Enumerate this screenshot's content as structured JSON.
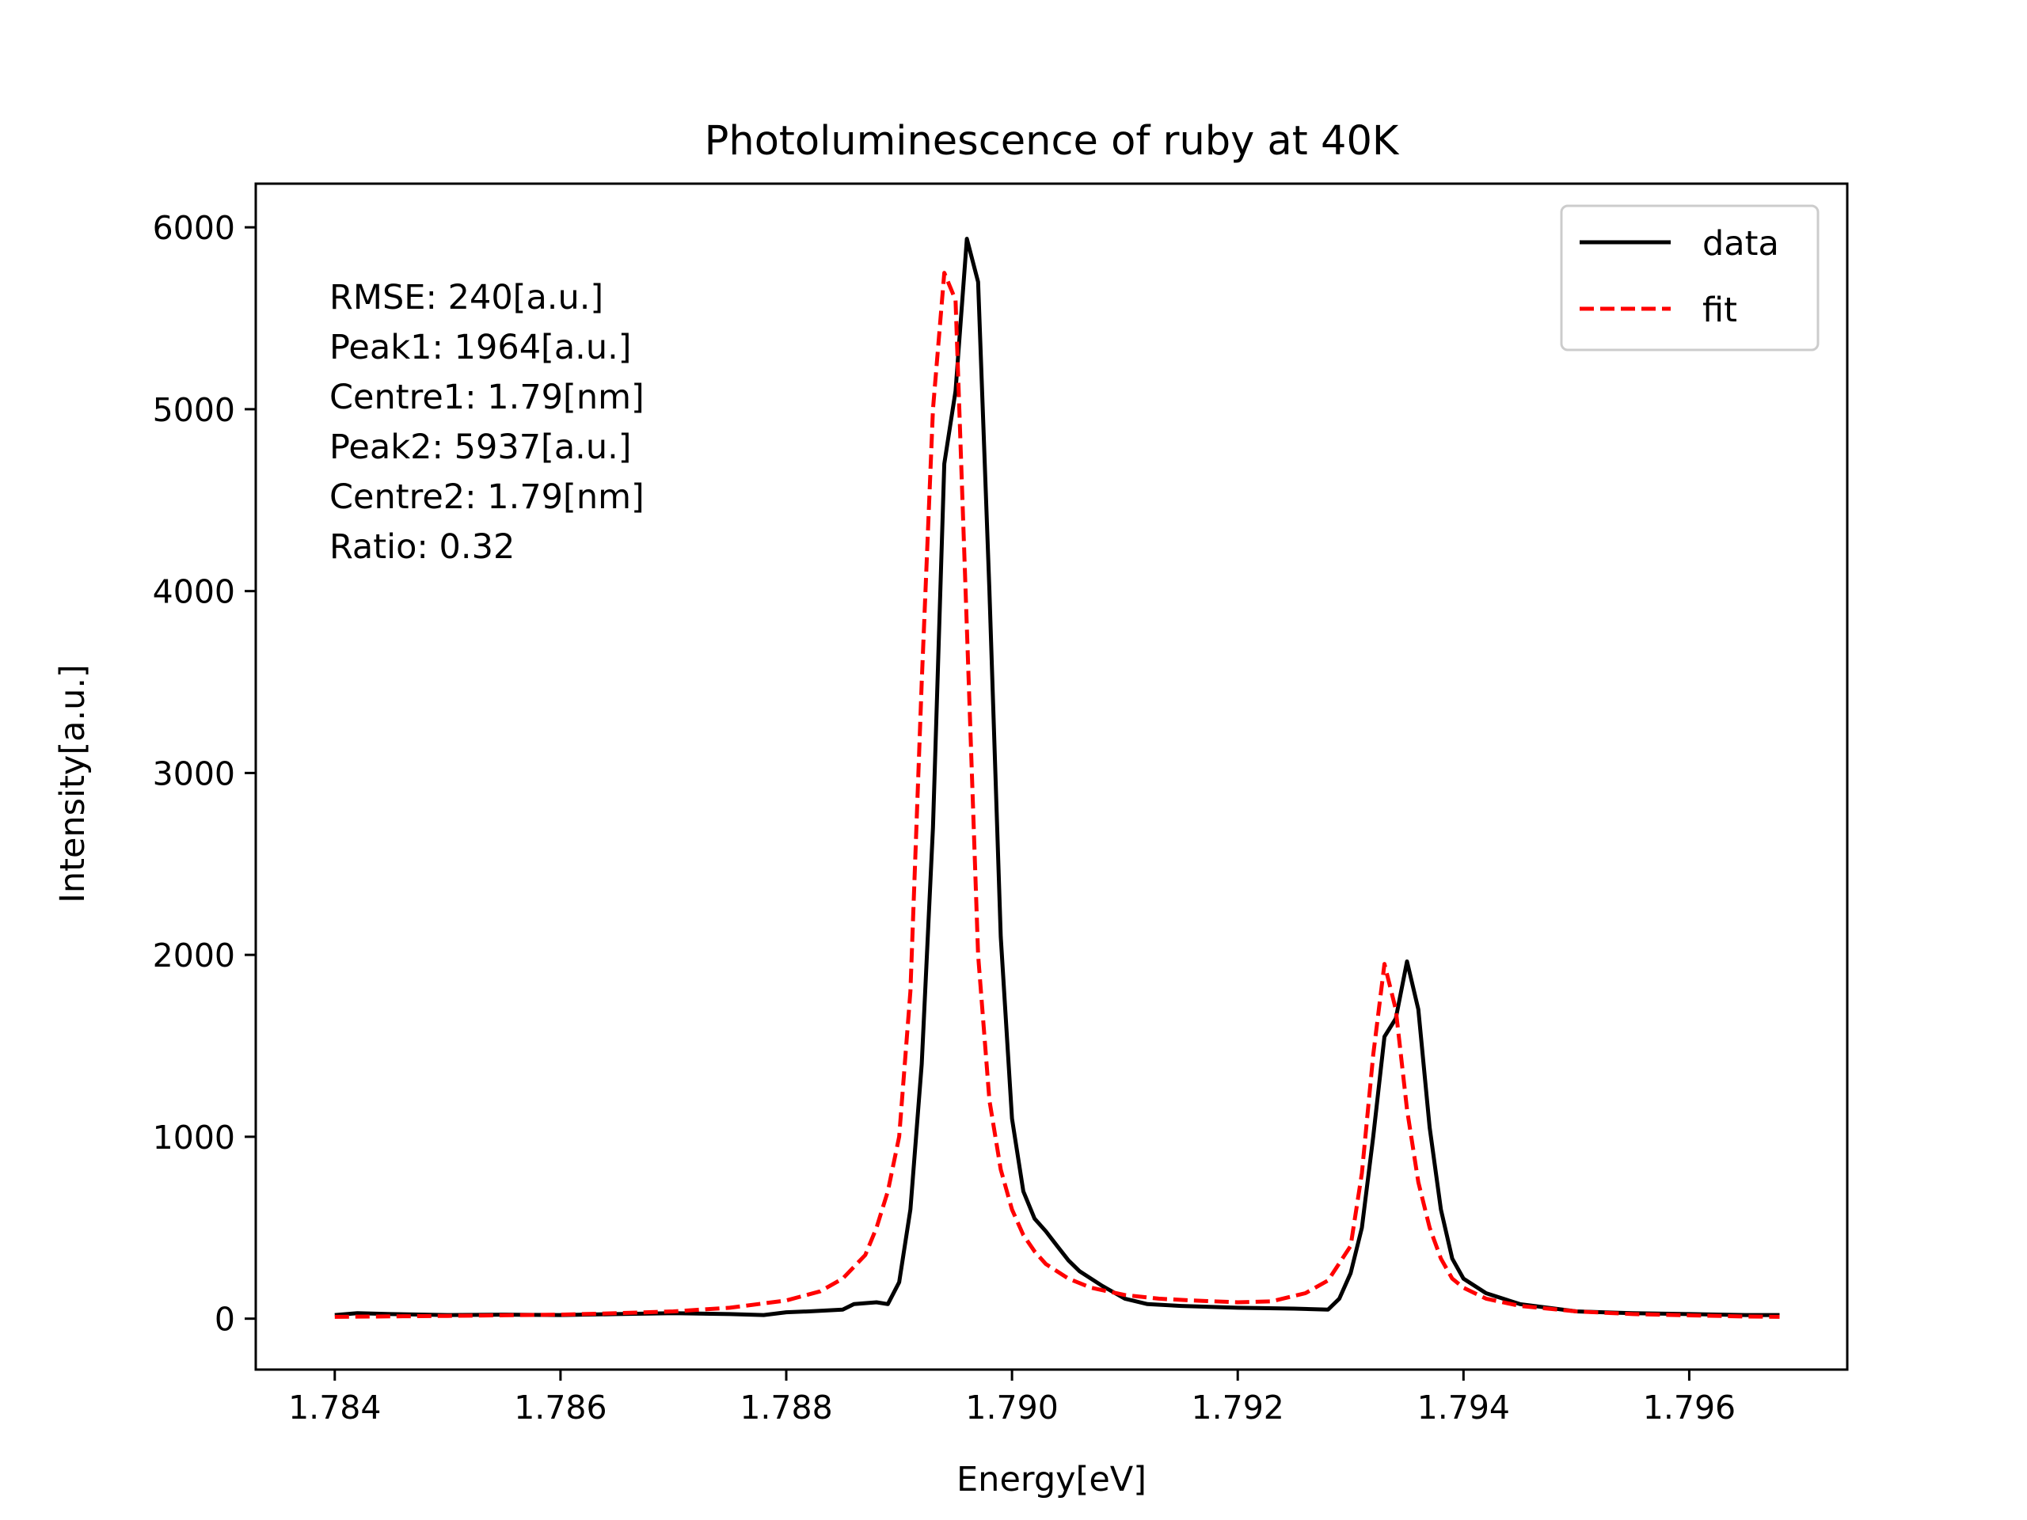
{
  "chart_data": {
    "type": "line",
    "title": "Photoluminescence of ruby at 40K",
    "xlabel": "Energy[eV]",
    "ylabel": "Intensity[a.u.]",
    "xlim": [
      1.7833,
      1.7974
    ],
    "ylim": [
      -280,
      6240
    ],
    "xticks": [
      1.784,
      1.786,
      1.788,
      1.79,
      1.792,
      1.794,
      1.796
    ],
    "xtick_labels": [
      "1.784",
      "1.786",
      "1.788",
      "1.790",
      "1.792",
      "1.794",
      "1.796"
    ],
    "yticks": [
      0,
      1000,
      2000,
      3000,
      4000,
      5000,
      6000
    ],
    "ytick_labels": [
      "0",
      "1000",
      "2000",
      "3000",
      "4000",
      "5000",
      "6000"
    ],
    "grid": false,
    "legend_position": "top-right",
    "annotations": [
      "RMSE: 240[a.u.]",
      "Peak1: 1964[a.u.]",
      "Centre1: 1.79[nm]",
      "Peak2: 5937[a.u.]",
      "Centre2: 1.79[nm]",
      "Ratio: 0.32"
    ],
    "series": [
      {
        "name": "data",
        "style": "solid",
        "color": "#000000",
        "x": [
          1.784,
          1.7842,
          1.7845,
          1.785,
          1.7855,
          1.786,
          1.7865,
          1.787,
          1.7875,
          1.7878,
          1.788,
          1.7882,
          1.7885,
          1.7886,
          1.7888,
          1.7889,
          1.789,
          1.7891,
          1.7892,
          1.7893,
          1.7894,
          1.7895,
          1.7896,
          1.7897,
          1.7898,
          1.7899,
          1.79,
          1.7901,
          1.7902,
          1.7903,
          1.7904,
          1.7905,
          1.7906,
          1.7908,
          1.791,
          1.7912,
          1.7915,
          1.792,
          1.7925,
          1.7928,
          1.7929,
          1.793,
          1.7931,
          1.7932,
          1.7933,
          1.7934,
          1.7935,
          1.7936,
          1.7937,
          1.7938,
          1.7939,
          1.794,
          1.7942,
          1.7945,
          1.795,
          1.7955,
          1.796,
          1.7965,
          1.7968
        ],
        "y": [
          20,
          30,
          25,
          20,
          22,
          20,
          25,
          30,
          25,
          20,
          35,
          40,
          50,
          80,
          90,
          80,
          200,
          600,
          1400,
          2700,
          4700,
          5100,
          5937,
          5700,
          4000,
          2100,
          1100,
          700,
          550,
          480,
          400,
          320,
          260,
          180,
          110,
          80,
          70,
          60,
          55,
          50,
          110,
          250,
          500,
          1000,
          1550,
          1650,
          1964,
          1700,
          1050,
          600,
          330,
          220,
          140,
          80,
          40,
          30,
          25,
          20,
          20
        ]
      },
      {
        "name": "fit",
        "style": "dashed",
        "color": "#ff0000",
        "x": [
          1.784,
          1.785,
          1.786,
          1.7865,
          1.787,
          1.7875,
          1.788,
          1.7883,
          1.7885,
          1.7887,
          1.7888,
          1.7889,
          1.789,
          1.7891,
          1.7892,
          1.7893,
          1.7894,
          1.7895,
          1.7896,
          1.7897,
          1.7898,
          1.7899,
          1.79,
          1.7901,
          1.7902,
          1.7903,
          1.7905,
          1.7907,
          1.791,
          1.7913,
          1.7916,
          1.792,
          1.7923,
          1.7926,
          1.7928,
          1.793,
          1.7931,
          1.7932,
          1.7933,
          1.7934,
          1.7935,
          1.7936,
          1.7937,
          1.7938,
          1.7939,
          1.794,
          1.7942,
          1.7945,
          1.795,
          1.7955,
          1.796,
          1.7965,
          1.7968
        ],
        "y": [
          10,
          15,
          22,
          30,
          40,
          60,
          100,
          150,
          220,
          350,
          500,
          700,
          1000,
          1800,
          3500,
          5000,
          5750,
          5600,
          3800,
          2000,
          1200,
          820,
          600,
          460,
          370,
          300,
          220,
          170,
          130,
          110,
          100,
          90,
          95,
          140,
          210,
          400,
          800,
          1450,
          1950,
          1700,
          1150,
          750,
          500,
          330,
          220,
          170,
          110,
          70,
          40,
          25,
          18,
          12,
          10
        ]
      }
    ]
  }
}
